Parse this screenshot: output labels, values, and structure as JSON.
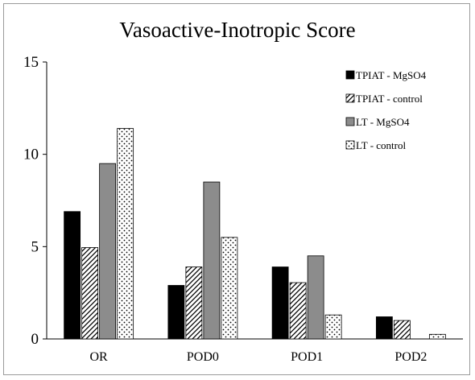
{
  "chart_data": {
    "type": "bar",
    "title": "Vasoactive-Inotropic Score",
    "xlabel": "",
    "ylabel": "",
    "ylim": [
      0,
      15
    ],
    "yticks": [
      0,
      5,
      10,
      15
    ],
    "categories": [
      "OR",
      "POD0",
      "POD1",
      "POD2"
    ],
    "series": [
      {
        "name": "TPIAT - MgSO4",
        "values": [
          6.9,
          2.9,
          3.9,
          1.2
        ],
        "fill": "black"
      },
      {
        "name": "TPIAT - control",
        "values": [
          4.95,
          3.9,
          3.05,
          1.0
        ],
        "fill": "hatch"
      },
      {
        "name": "LT - MgSO4",
        "values": [
          9.5,
          8.5,
          4.5,
          0
        ],
        "fill": "gray"
      },
      {
        "name": "LT - control",
        "values": [
          11.4,
          5.5,
          1.3,
          0.25
        ],
        "fill": "dots"
      }
    ],
    "grid": false,
    "legend_position": "top-right"
  },
  "colors": {
    "black": "#000000",
    "gray": "#8c8c8c",
    "axis": "#000000",
    "frame": "#9a9a9a"
  }
}
